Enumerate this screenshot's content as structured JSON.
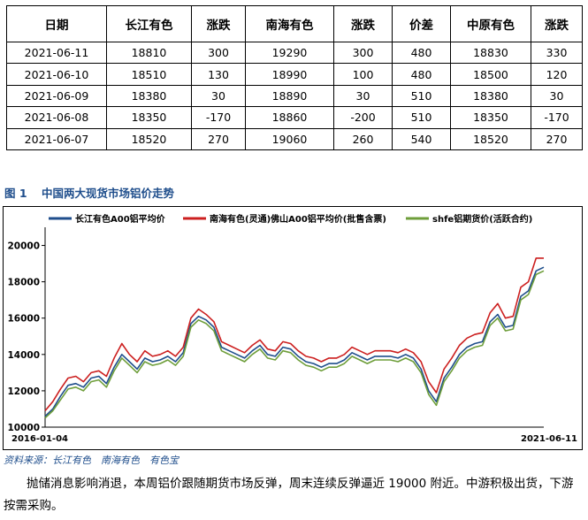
{
  "table": {
    "headers": [
      "日期",
      "长江有色",
      "涨跌",
      "南海有色",
      "涨跌",
      "价差",
      "中原有色",
      "涨跌"
    ],
    "rows": [
      [
        "2021-06-11",
        "18810",
        "300",
        "19290",
        "300",
        "480",
        "18830",
        "330"
      ],
      [
        "2021-06-10",
        "18510",
        "130",
        "18990",
        "100",
        "480",
        "18500",
        "120"
      ],
      [
        "2021-06-09",
        "18380",
        "30",
        "18890",
        "30",
        "510",
        "18380",
        "30"
      ],
      [
        "2021-06-08",
        "18350",
        "-170",
        "18860",
        "-200",
        "510",
        "18350",
        "-170"
      ],
      [
        "2021-06-07",
        "18520",
        "270",
        "19060",
        "260",
        "540",
        "18520",
        "270"
      ]
    ]
  },
  "figure": {
    "number": "图 1",
    "title": "中国两大现货市场铝价走势"
  },
  "chart_data": {
    "type": "line",
    "x_start_label": "2016-01-04",
    "x_end_label": "2021-06-11",
    "ylim": [
      10000,
      21000
    ],
    "yticks": [
      "10000",
      "12000",
      "14000",
      "16000",
      "18000",
      "20000"
    ],
    "grid": false,
    "legend_position": "top",
    "x": [
      "2016-01",
      "2016-02",
      "2016-03",
      "2016-04",
      "2016-05",
      "2016-06",
      "2016-07",
      "2016-08",
      "2016-09",
      "2016-10",
      "2016-11",
      "2016-12",
      "2017-01",
      "2017-02",
      "2017-03",
      "2017-04",
      "2017-05",
      "2017-06",
      "2017-07",
      "2017-08",
      "2017-09",
      "2017-10",
      "2017-11",
      "2017-12",
      "2018-01",
      "2018-02",
      "2018-03",
      "2018-04",
      "2018-05",
      "2018-06",
      "2018-07",
      "2018-08",
      "2018-09",
      "2018-10",
      "2018-11",
      "2018-12",
      "2019-01",
      "2019-02",
      "2019-03",
      "2019-04",
      "2019-05",
      "2019-06",
      "2019-07",
      "2019-08",
      "2019-09",
      "2019-10",
      "2019-11",
      "2019-12",
      "2020-01",
      "2020-02",
      "2020-03",
      "2020-04",
      "2020-05",
      "2020-06",
      "2020-07",
      "2020-08",
      "2020-09",
      "2020-10",
      "2020-11",
      "2020-12",
      "2021-01",
      "2021-02",
      "2021-03",
      "2021-04",
      "2021-05",
      "2021-06"
    ],
    "series": [
      {
        "name": "长江有色A00铝平均价",
        "color": "#1f4e8c",
        "values": [
          10600,
          11000,
          11700,
          12300,
          12400,
          12200,
          12700,
          12800,
          12400,
          13300,
          14000,
          13600,
          13200,
          13800,
          13600,
          13700,
          13900,
          13600,
          14100,
          15700,
          16100,
          15900,
          15500,
          14400,
          14200,
          14000,
          13800,
          14200,
          14500,
          14000,
          13900,
          14400,
          14300,
          13900,
          13600,
          13500,
          13300,
          13500,
          13500,
          13700,
          14100,
          13900,
          13700,
          13900,
          13900,
          13900,
          13800,
          14000,
          13800,
          13200,
          12000,
          11400,
          12700,
          13300,
          14000,
          14400,
          14600,
          14700,
          15800,
          16200,
          15500,
          15600,
          17200,
          17500,
          18600,
          18800
        ]
      },
      {
        "name": "南海有色(灵通)佛山A00铝平均价(批售含票)",
        "color": "#cc1f1f",
        "values": [
          10900,
          11400,
          12100,
          12700,
          12800,
          12500,
          13000,
          13100,
          12800,
          13800,
          14600,
          14000,
          13600,
          14200,
          13900,
          14000,
          14200,
          13900,
          14400,
          16000,
          16500,
          16200,
          15800,
          14700,
          14500,
          14300,
          14100,
          14500,
          14800,
          14300,
          14200,
          14700,
          14600,
          14200,
          13900,
          13800,
          13600,
          13800,
          13800,
          14000,
          14400,
          14200,
          14000,
          14200,
          14200,
          14200,
          14100,
          14300,
          14100,
          13600,
          12500,
          11900,
          13200,
          13800,
          14500,
          14900,
          15100,
          15200,
          16300,
          16800,
          16000,
          16100,
          17700,
          18000,
          19300,
          19300
        ]
      },
      {
        "name": "shfe铝期货价(活跃合约)",
        "color": "#6e9e3a",
        "values": [
          10500,
          10900,
          11500,
          12100,
          12200,
          12000,
          12500,
          12600,
          12200,
          13100,
          13800,
          13400,
          13000,
          13600,
          13400,
          13500,
          13700,
          13400,
          13900,
          15500,
          15900,
          15700,
          15300,
          14200,
          14000,
          13800,
          13600,
          14000,
          14300,
          13800,
          13700,
          14200,
          14100,
          13700,
          13400,
          13300,
          13100,
          13300,
          13300,
          13500,
          13900,
          13700,
          13500,
          13700,
          13700,
          13700,
          13600,
          13800,
          13600,
          13000,
          11800,
          11200,
          12500,
          13100,
          13800,
          14200,
          14400,
          14500,
          15600,
          16000,
          15300,
          15400,
          17000,
          17300,
          18400,
          18600
        ]
      }
    ]
  },
  "source": "资料来源：长江有色　南海有色　有色宝",
  "paragraph": "抛储消息影响消退，本周铝价跟随期货市场反弹，周末连续反弹逼近 19000 附近。中游积极出货，下游按需采购。"
}
